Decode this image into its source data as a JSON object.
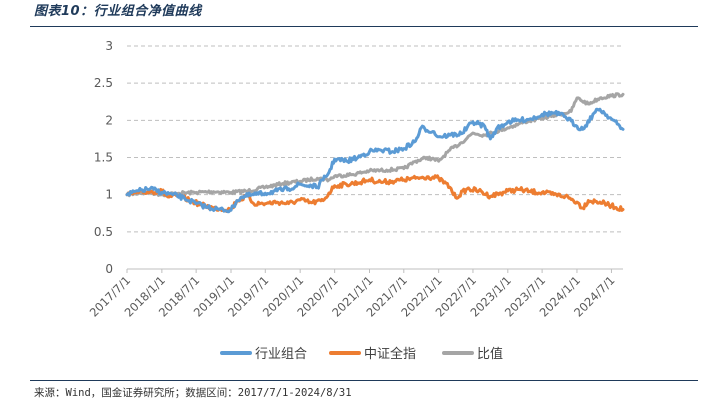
{
  "figure": {
    "title": "图表10：行业组合净值曲线",
    "source": "来源：Wind，国金证券研究所；数据区间：2017/7/1-2024/8/31"
  },
  "chart_data": {
    "type": "line",
    "title": "",
    "xlabel": "",
    "ylabel": "",
    "ylim": [
      0,
      3
    ],
    "yticks": [
      "0",
      "0.5",
      "1",
      "1.5",
      "2",
      "2.5",
      "3"
    ],
    "xlim": [
      "2017-07-01",
      "2024-08-31"
    ],
    "xticks": [
      "2017/7/1",
      "2018/1/1",
      "2018/7/1",
      "2019/1/1",
      "2019/7/1",
      "2020/1/1",
      "2020/7/1",
      "2021/1/1",
      "2021/7/1",
      "2022/1/1",
      "2022/7/1",
      "2023/1/1",
      "2023/7/1",
      "2024/1/1",
      "2024/7/1"
    ],
    "grid": "horizontal dashed",
    "legend_position": "bottom",
    "colors": {
      "行业组合": "#5b9bd5",
      "中证全指": "#ed7d31",
      "比值": "#a5a5a5"
    },
    "series": [
      {
        "name": "行业组合",
        "points": [
          [
            "2017-07-01",
            1.0
          ],
          [
            "2017-09-01",
            1.05
          ],
          [
            "2017-11-01",
            1.08
          ],
          [
            "2018-01-01",
            1.03
          ],
          [
            "2018-03-01",
            1.0
          ],
          [
            "2018-05-01",
            0.95
          ],
          [
            "2018-07-01",
            0.88
          ],
          [
            "2018-09-01",
            0.83
          ],
          [
            "2018-11-01",
            0.8
          ],
          [
            "2019-01-01",
            0.79
          ],
          [
            "2019-02-01",
            0.92
          ],
          [
            "2019-03-01",
            0.97
          ],
          [
            "2019-05-01",
            1.0
          ],
          [
            "2019-07-01",
            1.02
          ],
          [
            "2019-09-01",
            1.05
          ],
          [
            "2019-11-01",
            1.08
          ],
          [
            "2020-01-01",
            1.14
          ],
          [
            "2020-02-01",
            1.12
          ],
          [
            "2020-03-01",
            1.12
          ],
          [
            "2020-04-01",
            1.1
          ],
          [
            "2020-05-01",
            1.2
          ],
          [
            "2020-06-01",
            1.3
          ],
          [
            "2020-07-01",
            1.48
          ],
          [
            "2020-09-01",
            1.45
          ],
          [
            "2020-11-01",
            1.5
          ],
          [
            "2021-01-01",
            1.58
          ],
          [
            "2021-03-01",
            1.6
          ],
          [
            "2021-05-01",
            1.58
          ],
          [
            "2021-07-01",
            1.62
          ],
          [
            "2021-09-01",
            1.72
          ],
          [
            "2021-10-01",
            1.9
          ],
          [
            "2021-12-01",
            1.85
          ],
          [
            "2022-01-01",
            1.78
          ],
          [
            "2022-03-01",
            1.8
          ],
          [
            "2022-05-01",
            1.82
          ],
          [
            "2022-07-01",
            1.98
          ],
          [
            "2022-09-01",
            1.92
          ],
          [
            "2022-10-01",
            1.75
          ],
          [
            "2022-11-01",
            1.88
          ],
          [
            "2023-01-01",
            1.98
          ],
          [
            "2023-03-01",
            2.0
          ],
          [
            "2023-05-01",
            2.02
          ],
          [
            "2023-07-01",
            2.08
          ],
          [
            "2023-09-01",
            2.1
          ],
          [
            "2023-11-01",
            2.05
          ],
          [
            "2024-01-01",
            1.92
          ],
          [
            "2024-02-01",
            1.88
          ],
          [
            "2024-04-01",
            2.1
          ],
          [
            "2024-05-01",
            2.15
          ],
          [
            "2024-07-01",
            2.02
          ],
          [
            "2024-08-31",
            1.88
          ]
        ]
      },
      {
        "name": "中证全指",
        "points": [
          [
            "2017-07-01",
            1.0
          ],
          [
            "2017-09-01",
            1.03
          ],
          [
            "2017-11-01",
            1.04
          ],
          [
            "2018-01-01",
            1.05
          ],
          [
            "2018-02-01",
            0.97
          ],
          [
            "2018-04-01",
            0.98
          ],
          [
            "2018-06-01",
            0.92
          ],
          [
            "2018-08-01",
            0.86
          ],
          [
            "2018-10-01",
            0.82
          ],
          [
            "2019-01-01",
            0.8
          ],
          [
            "2019-02-01",
            0.92
          ],
          [
            "2019-04-01",
            0.98
          ],
          [
            "2019-05-01",
            0.88
          ],
          [
            "2019-07-01",
            0.88
          ],
          [
            "2019-09-01",
            0.9
          ],
          [
            "2019-11-01",
            0.88
          ],
          [
            "2020-01-01",
            0.93
          ],
          [
            "2020-03-01",
            0.89
          ],
          [
            "2020-05-01",
            0.92
          ],
          [
            "2020-07-01",
            1.12
          ],
          [
            "2020-09-01",
            1.14
          ],
          [
            "2020-11-01",
            1.16
          ],
          [
            "2021-01-01",
            1.2
          ],
          [
            "2021-03-01",
            1.17
          ],
          [
            "2021-05-01",
            1.18
          ],
          [
            "2021-07-01",
            1.2
          ],
          [
            "2021-09-01",
            1.22
          ],
          [
            "2021-11-01",
            1.24
          ],
          [
            "2022-01-01",
            1.22
          ],
          [
            "2022-03-01",
            1.1
          ],
          [
            "2022-04-01",
            0.96
          ],
          [
            "2022-06-01",
            1.08
          ],
          [
            "2022-08-01",
            1.05
          ],
          [
            "2022-10-01",
            0.98
          ],
          [
            "2023-01-01",
            1.05
          ],
          [
            "2023-03-01",
            1.07
          ],
          [
            "2023-05-01",
            1.04
          ],
          [
            "2023-07-01",
            1.03
          ],
          [
            "2023-09-01",
            1.0
          ],
          [
            "2023-11-01",
            0.98
          ],
          [
            "2024-01-01",
            0.9
          ],
          [
            "2024-02-01",
            0.82
          ],
          [
            "2024-03-01",
            0.92
          ],
          [
            "2024-05-01",
            0.9
          ],
          [
            "2024-07-01",
            0.85
          ],
          [
            "2024-08-31",
            0.8
          ]
        ]
      },
      {
        "name": "比值",
        "points": [
          [
            "2017-07-01",
            1.0
          ],
          [
            "2017-09-01",
            1.02
          ],
          [
            "2017-11-01",
            1.03
          ],
          [
            "2018-01-01",
            1.0
          ],
          [
            "2018-04-01",
            1.02
          ],
          [
            "2018-07-01",
            1.03
          ],
          [
            "2018-10-01",
            1.04
          ],
          [
            "2019-01-01",
            1.03
          ],
          [
            "2019-04-01",
            1.05
          ],
          [
            "2019-07-01",
            1.1
          ],
          [
            "2019-10-01",
            1.15
          ],
          [
            "2020-01-01",
            1.18
          ],
          [
            "2020-04-01",
            1.22
          ],
          [
            "2020-06-01",
            1.2
          ],
          [
            "2020-07-01",
            1.25
          ],
          [
            "2020-10-01",
            1.27
          ],
          [
            "2021-01-01",
            1.32
          ],
          [
            "2021-04-01",
            1.33
          ],
          [
            "2021-07-01",
            1.35
          ],
          [
            "2021-09-01",
            1.45
          ],
          [
            "2021-11-01",
            1.5
          ],
          [
            "2022-01-01",
            1.45
          ],
          [
            "2022-03-01",
            1.6
          ],
          [
            "2022-05-01",
            1.7
          ],
          [
            "2022-07-01",
            1.83
          ],
          [
            "2022-09-01",
            1.8
          ],
          [
            "2022-11-01",
            1.85
          ],
          [
            "2023-01-01",
            1.9
          ],
          [
            "2023-04-01",
            1.98
          ],
          [
            "2023-07-01",
            2.03
          ],
          [
            "2023-10-01",
            2.08
          ],
          [
            "2023-12-01",
            2.12
          ],
          [
            "2024-01-01",
            2.3
          ],
          [
            "2024-03-01",
            2.22
          ],
          [
            "2024-05-01",
            2.3
          ],
          [
            "2024-07-01",
            2.33
          ],
          [
            "2024-08-31",
            2.35
          ]
        ]
      }
    ]
  }
}
